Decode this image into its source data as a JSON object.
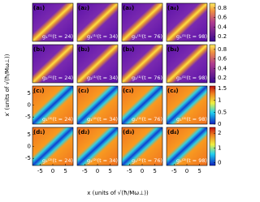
{
  "axes": {
    "x_label": "x (units of √(ħ/Mω⊥))",
    "y_label": "x′ (units of √(ħ/Mω⊥))",
    "lim": [
      -8,
      8
    ],
    "xticks": [
      -5,
      0,
      5
    ],
    "yticks": [
      5,
      0,
      -5
    ]
  },
  "rows": [
    {
      "colorbar": {
        "lim": [
          0.1,
          0.9
        ],
        "ticks": [
          0.2,
          0.4,
          0.6,
          0.8
        ]
      },
      "panels": [
        {
          "label": "(a₁)",
          "annotation": "g₁⁽¹⁾(t = 24)"
        },
        {
          "label": "(a₂)",
          "annotation": "g₁⁽¹⁾(t = 34)"
        },
        {
          "label": "(a₃)",
          "annotation": "g₁⁽¹⁾(t = 76)"
        },
        {
          "label": "(a₄)",
          "annotation": "g₁⁽¹⁾(t = 98)"
        }
      ]
    },
    {
      "colorbar": {
        "lim": [
          0.1,
          0.9
        ],
        "ticks": [
          0.2,
          0.4,
          0.6,
          0.8
        ]
      },
      "panels": [
        {
          "label": "(b₁)",
          "annotation": "g₂⁽¹⁾(t = 24)"
        },
        {
          "label": "(b₂)",
          "annotation": "g₂⁽¹⁾(t = 34)"
        },
        {
          "label": "(b₃)",
          "annotation": "g₂⁽¹⁾(t = 76)"
        },
        {
          "label": "(b₄)",
          "annotation": "g₂⁽¹⁾(t = 98)"
        }
      ]
    },
    {
      "colorbar": {
        "lim": [
          0,
          1.6
        ],
        "ticks": [
          0,
          0.5,
          1,
          1.5
        ]
      },
      "panels": [
        {
          "label": "(c₁)",
          "annotation": "g₁⁽²⁾(t = 24)"
        },
        {
          "label": "(c₂)",
          "annotation": "g₁⁽²⁾(t = 34)"
        },
        {
          "label": "(c₃)",
          "annotation": "g₁⁽²⁾(t = 76)"
        },
        {
          "label": "(c₄)",
          "annotation": "g₁⁽²⁾(t = 98)"
        }
      ]
    },
    {
      "colorbar": {
        "lim": [
          -0.2,
          2.4
        ],
        "ticks": [
          0,
          1,
          2
        ]
      },
      "panels": [
        {
          "label": "(d₁)",
          "annotation": "g₂⁽²⁾(t = 24)"
        },
        {
          "label": "(d₂)",
          "annotation": "g₂⁽²⁾(t = 34)"
        },
        {
          "label": "(d₃)",
          "annotation": "g₂⁽²⁾(t = 76)"
        },
        {
          "label": "(d₄)",
          "annotation": "g₂⁽²⁾(t = 98)"
        }
      ]
    }
  ]
}
